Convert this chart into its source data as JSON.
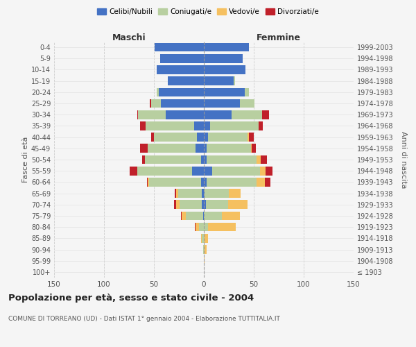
{
  "age_groups": [
    "100+",
    "95-99",
    "90-94",
    "85-89",
    "80-84",
    "75-79",
    "70-74",
    "65-69",
    "60-64",
    "55-59",
    "50-54",
    "45-49",
    "40-44",
    "35-39",
    "30-34",
    "25-29",
    "20-24",
    "15-19",
    "10-14",
    "5-9",
    "0-4"
  ],
  "birth_years": [
    "≤ 1903",
    "1904-1908",
    "1909-1913",
    "1914-1918",
    "1919-1923",
    "1924-1928",
    "1929-1933",
    "1934-1938",
    "1939-1943",
    "1944-1948",
    "1949-1953",
    "1954-1958",
    "1959-1963",
    "1964-1968",
    "1969-1973",
    "1974-1978",
    "1979-1983",
    "1984-1988",
    "1989-1993",
    "1994-1998",
    "1999-2003"
  ],
  "maschi": {
    "celibi": [
      0,
      0,
      0,
      0,
      0,
      1,
      2,
      2,
      3,
      12,
      3,
      8,
      7,
      10,
      38,
      43,
      45,
      36,
      47,
      44,
      49
    ],
    "coniugati": [
      0,
      0,
      1,
      2,
      5,
      17,
      22,
      24,
      52,
      55,
      56,
      48,
      43,
      48,
      28,
      10,
      2,
      0,
      0,
      0,
      0
    ],
    "vedovi": [
      0,
      0,
      0,
      1,
      3,
      4,
      4,
      2,
      1,
      0,
      0,
      0,
      0,
      0,
      0,
      0,
      0,
      0,
      0,
      0,
      0
    ],
    "divorziati": [
      0,
      0,
      0,
      0,
      1,
      1,
      2,
      1,
      1,
      7,
      3,
      8,
      3,
      6,
      1,
      1,
      0,
      0,
      0,
      0,
      0
    ]
  },
  "femmine": {
    "nubili": [
      0,
      0,
      0,
      0,
      0,
      0,
      2,
      1,
      3,
      8,
      3,
      3,
      4,
      6,
      28,
      36,
      41,
      30,
      42,
      39,
      45
    ],
    "coniugate": [
      0,
      0,
      1,
      1,
      4,
      18,
      22,
      24,
      50,
      48,
      50,
      44,
      40,
      49,
      30,
      15,
      4,
      1,
      0,
      0,
      0
    ],
    "vedove": [
      0,
      1,
      2,
      3,
      28,
      18,
      20,
      12,
      8,
      6,
      4,
      1,
      1,
      0,
      0,
      0,
      0,
      0,
      0,
      0,
      0
    ],
    "divorziate": [
      0,
      0,
      0,
      0,
      0,
      0,
      0,
      0,
      6,
      7,
      6,
      4,
      5,
      4,
      7,
      0,
      0,
      0,
      0,
      0,
      0
    ]
  },
  "colors": {
    "celibi": "#4472c4",
    "coniugati": "#b8cfa0",
    "vedovi": "#f5c060",
    "divorziati": "#c0202a"
  },
  "title": "Popolazione per età, sesso e stato civile - 2004",
  "subtitle": "COMUNE DI TORREANO (UD) - Dati ISTAT 1° gennaio 2004 - Elaborazione TUTTITALIA.IT",
  "xlabel_left": "Maschi",
  "xlabel_right": "Femmine",
  "ylabel_left": "Fasce di età",
  "ylabel_right": "Anni di nascita",
  "xlim": 150,
  "bg_color": "#f5f5f5",
  "legend_labels": [
    "Celibi/Nubili",
    "Coniugati/e",
    "Vedovi/e",
    "Divorziati/e"
  ]
}
